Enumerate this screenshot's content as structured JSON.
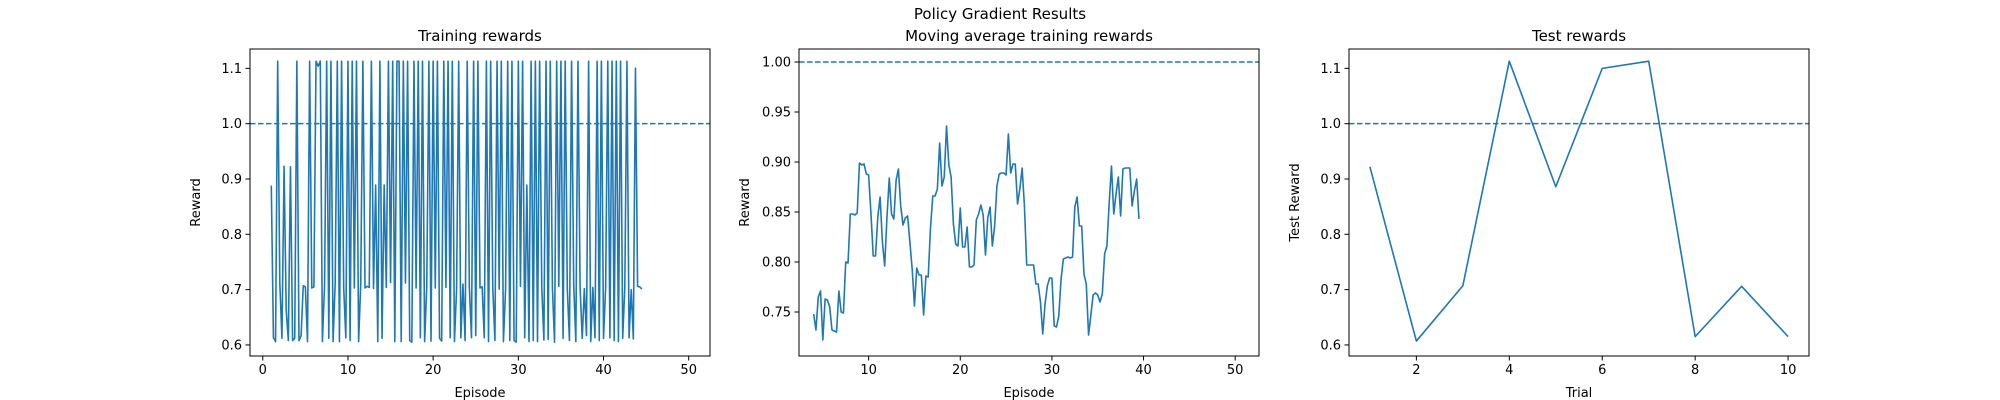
{
  "suptitle": "Policy Gradient Results",
  "style": {
    "line_color": "#1f77b4",
    "ref_color": "#1f77b4"
  },
  "chart_data": [
    {
      "type": "line",
      "title": "Training rewards",
      "xlabel": "Episode",
      "ylabel": "Reward",
      "xlim": [
        -1.5,
        52.5
      ],
      "ylim": [
        0.58,
        1.135
      ],
      "xticks": [
        0,
        10,
        20,
        30,
        40,
        50
      ],
      "yticks": [
        0.6,
        0.7,
        0.8,
        0.9,
        1.0,
        1.1
      ],
      "ytick_labels": [
        "0.6",
        "0.7",
        "0.8",
        "0.9",
        "1.0",
        "1.1"
      ],
      "ref_line": 1.0,
      "x_start": 1,
      "x_step": 0.25,
      "values": [
        0.888,
        0.613,
        0.606,
        1.113,
        0.712,
        0.612,
        0.923,
        0.663,
        0.608,
        0.922,
        0.608,
        0.612,
        1.113,
        0.608,
        0.617,
        0.707,
        0.705,
        0.606,
        1.113,
        0.703,
        0.705,
        1.113,
        1.104,
        1.113,
        0.606,
        0.707,
        1.113,
        0.612,
        1.113,
        0.606,
        0.712,
        1.113,
        0.606,
        1.113,
        0.703,
        0.613,
        1.113,
        0.608,
        1.113,
        0.703,
        1.113,
        0.606,
        0.71,
        1.113,
        0.703,
        0.706,
        0.704,
        1.113,
        0.702,
        0.889,
        0.606,
        1.113,
        0.612,
        0.889,
        0.704,
        1.113,
        0.713,
        1.113,
        0.606,
        1.113,
        1.113,
        0.606,
        1.113,
        0.712,
        1.113,
        0.608,
        0.605,
        1.113,
        0.703,
        1.113,
        0.613,
        1.113,
        0.606,
        0.705,
        1.113,
        0.607,
        1.113,
        0.703,
        1.113,
        0.612,
        0.607,
        1.113,
        0.704,
        1.113,
        0.613,
        1.113,
        0.606,
        0.7,
        1.113,
        0.613,
        0.71,
        0.608,
        1.113,
        0.704,
        0.613,
        1.113,
        0.617,
        1.113,
        0.703,
        0.705,
        0.613,
        1.113,
        0.606,
        1.113,
        0.703,
        0.608,
        1.113,
        0.701,
        1.113,
        0.606,
        0.7,
        1.113,
        0.608,
        1.113,
        0.608,
        0.605,
        1.113,
        0.706,
        1.113,
        0.613,
        0.889,
        0.606,
        1.113,
        0.608,
        1.113,
        0.606,
        1.113,
        0.704,
        0.609,
        1.113,
        0.61,
        1.113,
        0.703,
        0.605,
        1.113,
        0.706,
        1.113,
        0.612,
        1.113,
        0.701,
        0.608,
        1.113,
        0.71,
        0.606,
        1.113,
        0.704,
        0.612,
        0.702,
        0.617,
        1.113,
        0.606,
        0.704,
        0.613,
        1.113,
        0.608,
        1.113,
        0.612,
        0.704,
        1.113,
        0.613,
        1.113,
        0.608,
        1.113,
        0.606,
        1.113,
        0.612,
        0.704,
        1.113,
        0.613,
        0.7,
        0.611,
        1.1,
        0.706,
        0.705,
        0.701
      ]
    },
    {
      "type": "line",
      "title": "Moving average training rewards",
      "xlabel": "Episode",
      "ylabel": "Reward",
      "xlim": [
        2.4,
        52.6
      ],
      "ylim": [
        0.706,
        1.013
      ],
      "xticks": [
        10,
        20,
        30,
        40,
        50
      ],
      "yticks": [
        0.75,
        0.8,
        0.85,
        0.9,
        0.95,
        1.0
      ],
      "ytick_labels": [
        "0.75",
        "0.80",
        "0.85",
        "0.90",
        "0.95",
        "1.00"
      ],
      "ref_line": 1.0,
      "x_start": 4,
      "x_step": 0.25,
      "values": [
        0.748,
        0.732,
        0.765,
        0.771,
        0.722,
        0.763,
        0.762,
        0.755,
        0.732,
        0.731,
        0.73,
        0.771,
        0.75,
        0.749,
        0.8,
        0.799,
        0.848,
        0.848,
        0.847,
        0.849,
        0.899,
        0.897,
        0.898,
        0.888,
        0.887,
        0.849,
        0.806,
        0.806,
        0.845,
        0.865,
        0.82,
        0.796,
        0.845,
        0.884,
        0.848,
        0.843,
        0.882,
        0.893,
        0.856,
        0.837,
        0.844,
        0.846,
        0.82,
        0.793,
        0.756,
        0.794,
        0.787,
        0.787,
        0.747,
        0.786,
        0.785,
        0.834,
        0.866,
        0.866,
        0.873,
        0.919,
        0.876,
        0.885,
        0.936,
        0.897,
        0.885,
        0.838,
        0.818,
        0.816,
        0.854,
        0.815,
        0.815,
        0.835,
        0.795,
        0.795,
        0.797,
        0.842,
        0.848,
        0.857,
        0.847,
        0.807,
        0.844,
        0.855,
        0.816,
        0.836,
        0.876,
        0.888,
        0.889,
        0.889,
        0.887,
        0.928,
        0.889,
        0.898,
        0.898,
        0.858,
        0.873,
        0.894,
        0.856,
        0.797,
        0.797,
        0.797,
        0.797,
        0.778,
        0.778,
        0.76,
        0.728,
        0.758,
        0.776,
        0.784,
        0.784,
        0.736,
        0.735,
        0.746,
        0.783,
        0.803,
        0.804,
        0.805,
        0.804,
        0.805,
        0.855,
        0.865,
        0.836,
        0.836,
        0.788,
        0.778,
        0.727,
        0.747,
        0.767,
        0.769,
        0.767,
        0.76,
        0.768,
        0.808,
        0.816,
        0.859,
        0.896,
        0.848,
        0.868,
        0.885,
        0.846,
        0.893,
        0.894,
        0.894,
        0.894,
        0.856,
        0.871,
        0.883,
        0.843
      ]
    },
    {
      "type": "line",
      "title": "Test rewards",
      "xlabel": "Trial",
      "ylabel": "Test Reward",
      "xlim": [
        0.55,
        10.45
      ],
      "ylim": [
        0.58,
        1.135
      ],
      "xticks": [
        2,
        4,
        6,
        8,
        10
      ],
      "yticks": [
        0.6,
        0.7,
        0.8,
        0.9,
        1.0,
        1.1
      ],
      "ytick_labels": [
        "0.6",
        "0.7",
        "0.8",
        "0.9",
        "1.0",
        "1.1"
      ],
      "ref_line": 1.0,
      "x": [
        1,
        2,
        3,
        4,
        5,
        6,
        7,
        8,
        9,
        10
      ],
      "values": [
        0.922,
        0.607,
        0.707,
        1.113,
        0.886,
        1.1,
        1.113,
        0.615,
        0.706,
        0.615
      ]
    }
  ]
}
